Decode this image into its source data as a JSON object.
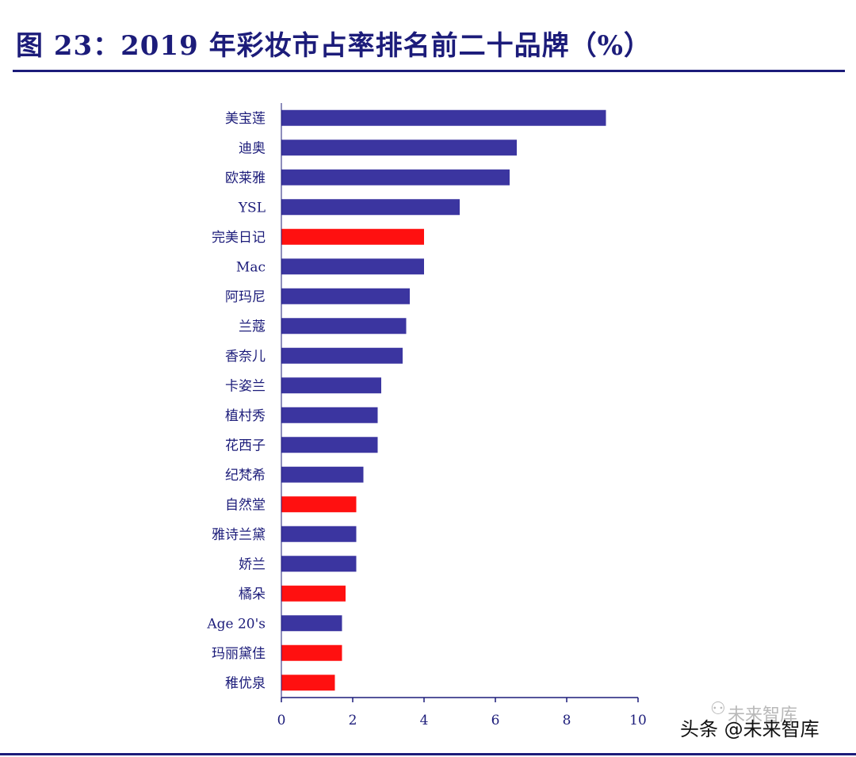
{
  "header": {
    "title": "图 23：2019 年彩妆市占率排名前二十品牌（%）"
  },
  "footer": {
    "watermark": "头条 @未来智库",
    "watermark_faded": "未来智库"
  },
  "chart_data": {
    "type": "bar",
    "orientation": "horizontal",
    "title": "",
    "xlabel": "",
    "ylabel": "",
    "xlim": [
      0,
      10
    ],
    "xticks": [
      0,
      2,
      4,
      6,
      8,
      10
    ],
    "grid": false,
    "categories": [
      "美宝莲",
      "迪奥",
      "欧莱雅",
      "YSL",
      "完美日记",
      "Mac",
      "阿玛尼",
      "兰蔻",
      "香奈儿",
      "卡姿兰",
      "植村秀",
      "花西子",
      "纪梵希",
      "自然堂",
      "雅诗兰黛",
      "娇兰",
      "橘朵",
      "Age 20's",
      "玛丽黛佳",
      "稚优泉"
    ],
    "values": [
      9.1,
      6.6,
      6.4,
      5.0,
      4.0,
      4.0,
      3.6,
      3.5,
      3.4,
      2.8,
      2.7,
      2.7,
      2.3,
      2.1,
      2.1,
      2.1,
      1.8,
      1.7,
      1.7,
      1.5
    ],
    "highlight": [
      false,
      false,
      false,
      false,
      true,
      false,
      false,
      false,
      false,
      false,
      false,
      false,
      false,
      true,
      false,
      false,
      true,
      false,
      true,
      true
    ],
    "colors": {
      "default_bar": "#3b35a0",
      "highlight_bar": "#ff1010",
      "axis": "#1c1c7a",
      "label": "#1c1c7a"
    }
  }
}
